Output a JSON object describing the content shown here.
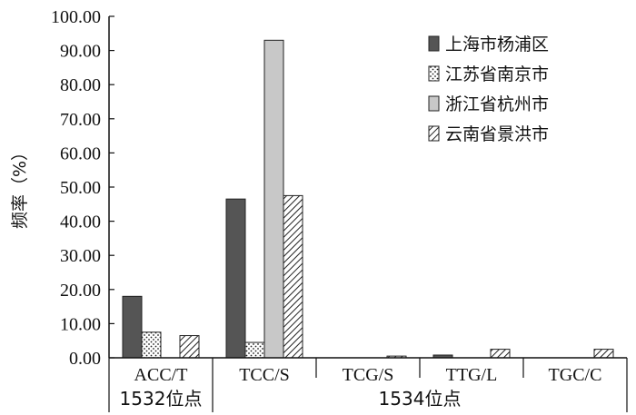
{
  "chart_data": {
    "type": "bar",
    "ylabel": "频率（%）",
    "ylim": [
      0,
      100
    ],
    "ytick_step": 10,
    "ytick_labels": [
      "0.00",
      "10.00",
      "20.00",
      "30.00",
      "40.00",
      "50.00",
      "60.00",
      "70.00",
      "80.00",
      "90.00",
      "100.00"
    ],
    "categories": [
      "ACC/T",
      "TCC/S",
      "TCG/S",
      "TTG/L",
      "TGC/C"
    ],
    "groups": [
      {
        "label": "1532位点",
        "categories": [
          "ACC/T"
        ]
      },
      {
        "label": "1534位点",
        "categories": [
          "TCC/S",
          "TCG/S",
          "TTG/L",
          "TGC/C"
        ]
      }
    ],
    "legend_position": "top-right",
    "grid": false,
    "series": [
      {
        "name": "上海市杨浦区",
        "values": [
          18.0,
          46.5,
          0.0,
          0.8,
          0.0
        ],
        "pattern": "solid-dark",
        "color": "#555555"
      },
      {
        "name": "江苏省南京市",
        "values": [
          7.5,
          4.5,
          0.0,
          0.0,
          0.0
        ],
        "pattern": "dots",
        "color": "#ffffff"
      },
      {
        "name": "浙江省杭州市",
        "values": [
          0.0,
          93.0,
          0.0,
          0.0,
          0.0
        ],
        "pattern": "solid-light",
        "color": "#c8c8c8"
      },
      {
        "name": "云南省景洪市",
        "values": [
          6.5,
          47.5,
          0.5,
          2.5,
          2.5
        ],
        "pattern": "diagonal-hatch",
        "color": "#ffffff"
      }
    ]
  }
}
